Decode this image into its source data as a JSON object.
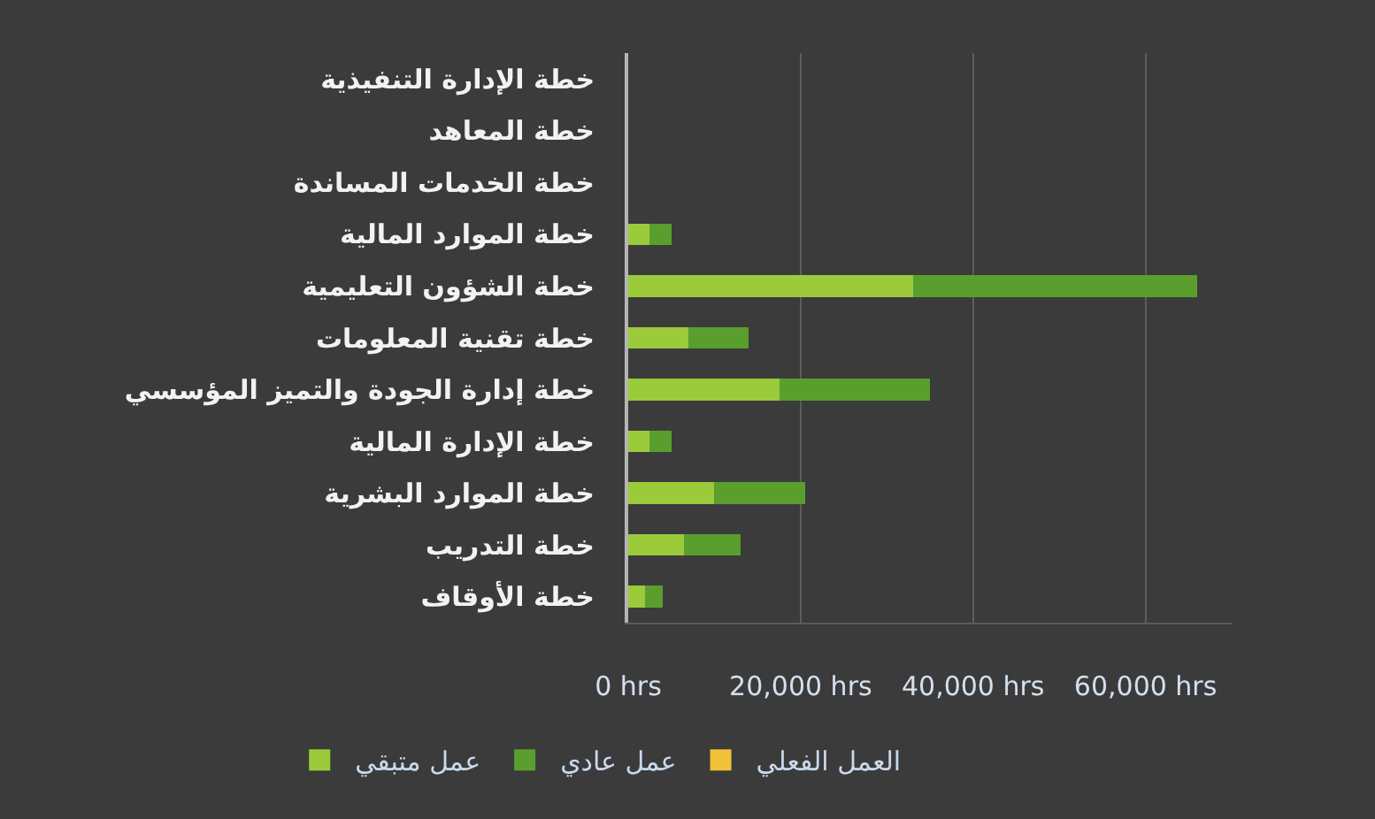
{
  "chart_data": {
    "type": "bar",
    "orientation": "horizontal",
    "stacked": true,
    "categories": [
      "خطة الإدارة التنفيذية",
      "خطة المعاهد",
      "خطة الخدمات المساندة",
      "خطة الموارد المالية",
      "خطة الشؤون التعليمية",
      "خطة تقنية المعلومات",
      "خطة إدارة الجودة والتميز المؤسسي",
      "خطة الإدارة المالية",
      "خطة الموارد البشرية",
      "خطة التدريب",
      "خطة الأوقاف"
    ],
    "series": [
      {
        "name": "عمل متبقي",
        "color": "#9bcb3b",
        "values": [
          0,
          0,
          0,
          2500,
          33000,
          7000,
          17500,
          2500,
          10000,
          6500,
          2000
        ]
      },
      {
        "name": "عمل عادي",
        "color": "#5a9f2e",
        "values": [
          0,
          0,
          0,
          2500,
          33000,
          7000,
          17500,
          2500,
          10500,
          6500,
          2000
        ]
      },
      {
        "name": "العمل الفعلي",
        "color": "#f0c23a",
        "values": [
          0,
          0,
          0,
          0,
          0,
          0,
          0,
          0,
          0,
          0,
          0
        ]
      }
    ],
    "xlim": [
      0,
      70000
    ],
    "xticks": [
      {
        "value": 0,
        "label": "0 hrs"
      },
      {
        "value": 20000,
        "label": "20,000 hrs"
      },
      {
        "value": 40000,
        "label": "40,000 hrs"
      },
      {
        "value": 60000,
        "label": "60,000 hrs"
      }
    ],
    "grid": "x",
    "legend": "bottom"
  }
}
